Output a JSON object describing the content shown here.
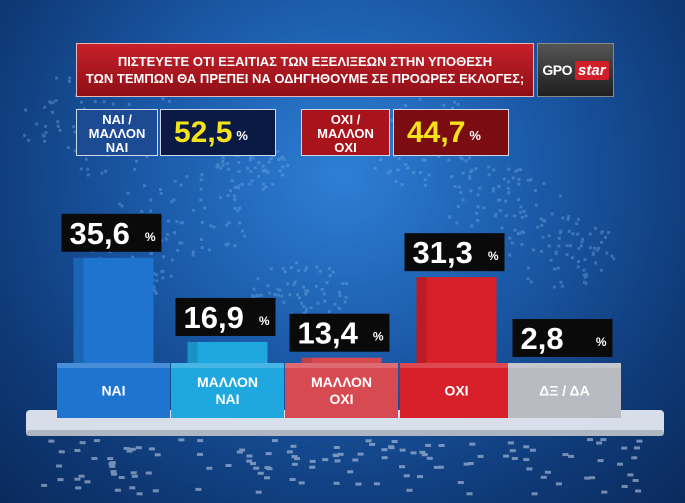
{
  "question": {
    "line1": "ΠΙΣΤΕΥΕΤΕ ΟΤΙ ΕΞΑΙΤΙΑΣ ΤΩΝ ΕΞΕΛΙΞΕΩΝ ΣΤΗΝ ΥΠΟΘΕΣΗ",
    "line2": "ΤΩΝ ΤΕΜΠΩΝ ΘΑ ΠΡΕΠΕΙ ΝΑ ΟΔΗΓΗΘΟΥΜΕ ΣΕ ΠΡΟΩΡΕΣ ΕΚΛΟΓΕΣ;"
  },
  "logo": {
    "gpo": "GPO",
    "star": "star"
  },
  "totals": {
    "yes": {
      "label_lines": [
        "ΝΑΙ /",
        "ΜΑΛΛΟΝ",
        "ΝΑΙ"
      ],
      "value": "52,5",
      "unit": "%"
    },
    "no": {
      "label_lines": [
        "ΟΧΙ /",
        "ΜΑΛΛΟΝ",
        "ΟΧΙ"
      ],
      "value": "44,7",
      "unit": "%"
    }
  },
  "colors": {
    "nai": "#1f74cf",
    "mallon_nai": "#1fa7e0",
    "mallon_oxi": "#d84a52",
    "oxi": "#d8202a",
    "dk_da": "#b8bcc2"
  },
  "chart_data": {
    "type": "bar",
    "title": "",
    "xlabel": "",
    "ylabel": "",
    "unit": "%",
    "ylim": [
      0,
      40
    ],
    "grid": false,
    "categories": [
      {
        "lines": [
          "ΝΑΙ"
        ]
      },
      {
        "lines": [
          "ΜΑΛΛΟΝ",
          "ΝΑΙ"
        ]
      },
      {
        "lines": [
          "ΜΑΛΛΟΝ",
          "ΟΧΙ"
        ]
      },
      {
        "lines": [
          "ΟΧΙ"
        ]
      },
      {
        "lines": [
          "ΔΞ / ΔΑ"
        ]
      }
    ],
    "values": [
      35.6,
      16.9,
      13.4,
      31.3,
      2.8
    ],
    "value_labels": [
      "35,6",
      "16,9",
      "13,4",
      "31,3",
      "2,8"
    ]
  }
}
